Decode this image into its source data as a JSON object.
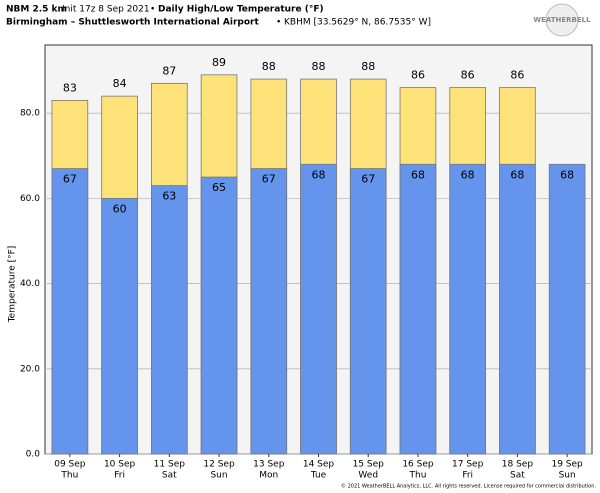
{
  "chart_data": {
    "type": "bar",
    "title": "NBM 2.5 km",
    "init": "Init 17z 8 Sep 2021",
    "subtitle": "Daily High/Low Temperature (°F)",
    "location": "Birmingham – Shuttlesworth International Airport",
    "station": "KBHM [33.5629° N, 86.7535° W]",
    "logo": "WEATHERBELL",
    "footer": "© 2021 WeatherBELL Analytics, LLC. All rights reserved. License required for commercial distribution.",
    "y_label": "Temperature [°F]",
    "categories": [
      "09 Sep",
      "10 Sep",
      "11 Sep",
      "12 Sep",
      "13 Sep",
      "14 Sep",
      "15 Sep",
      "16 Sep",
      "17 Sep",
      "18 Sep",
      "19 Sep"
    ],
    "weekdays": [
      "Thu",
      "Fri",
      "Sat",
      "Sun",
      "Mon",
      "Tue",
      "Wed",
      "Thu",
      "Fri",
      "Sat",
      "Sun"
    ],
    "series": [
      {
        "name": "High",
        "color": "#fde27a",
        "values": [
          83,
          84,
          87,
          89,
          88,
          88,
          88,
          86,
          86,
          86,
          null
        ]
      },
      {
        "name": "Low",
        "color": "#6494ec",
        "values": [
          67,
          60,
          63,
          65,
          67,
          68,
          67,
          68,
          68,
          68,
          68
        ]
      }
    ],
    "ylim": [
      0,
      96
    ],
    "yticks": [
      {
        "value": 0,
        "label": "0.0"
      },
      {
        "value": 20,
        "label": "20.0"
      },
      {
        "value": 40,
        "label": "40.0"
      },
      {
        "value": 60,
        "label": "60.0"
      },
      {
        "value": 80,
        "label": "80.0"
      }
    ],
    "grid": true
  }
}
